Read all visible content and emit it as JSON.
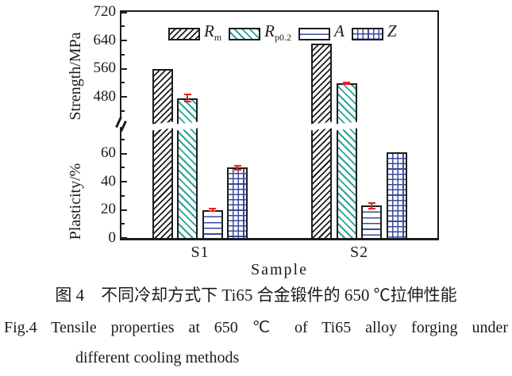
{
  "figure": {
    "caption_zh": "图 4　不同冷却方式下 Ti65 合金锻件的 650 ℃拉伸性能",
    "caption_en_line1": "Fig.4  Tensile properties at 650 ℃ of Ti65 alloy forging under",
    "caption_en_line2": "different cooling methods"
  },
  "chart_data": {
    "type": "bar",
    "broken_axis": true,
    "categories": [
      "S1",
      "S2"
    ],
    "xlabel": "Sample",
    "strength_axis": {
      "label": "Strength/MPa",
      "major_ticks": [
        480,
        560,
        640,
        720
      ],
      "minor_ticks": [
        440,
        520,
        600,
        680
      ],
      "range": [
        430,
        725
      ]
    },
    "plasticity_axis": {
      "label": "Plasticity/%",
      "major_ticks": [
        0,
        20,
        40,
        60
      ],
      "minor_ticks": [
        10,
        30,
        50,
        70
      ],
      "range": [
        0,
        75
      ]
    },
    "series": [
      {
        "name": "Rm",
        "axis": "strength",
        "pattern": "rm",
        "values": [
          560,
          630
        ],
        "errors": [
          0,
          0
        ]
      },
      {
        "name": "Rp0.2",
        "axis": "strength",
        "pattern": "rp",
        "values": [
          476,
          518
        ],
        "errors": [
          10,
          3
        ]
      },
      {
        "name": "A",
        "axis": "plasticity",
        "pattern": "a",
        "values": [
          20,
          23
        ],
        "errors": [
          1,
          2
        ]
      },
      {
        "name": "Z",
        "axis": "plasticity",
        "pattern": "z",
        "values": [
          50,
          61
        ],
        "errors": [
          1.5,
          0
        ]
      }
    ],
    "legend": [
      {
        "symbol": "R",
        "sub": "m"
      },
      {
        "symbol": "R",
        "sub": "p0.2"
      },
      {
        "symbol": "A",
        "sub": ""
      },
      {
        "symbol": "Z",
        "sub": ""
      }
    ],
    "colors": {
      "black_hatch": "#1c1c1c",
      "teal_hatch": "#29a399",
      "blue_lines": "#3b4aa0",
      "error_bar": "#ee1c1c",
      "axis": "#1c1c1c"
    }
  }
}
